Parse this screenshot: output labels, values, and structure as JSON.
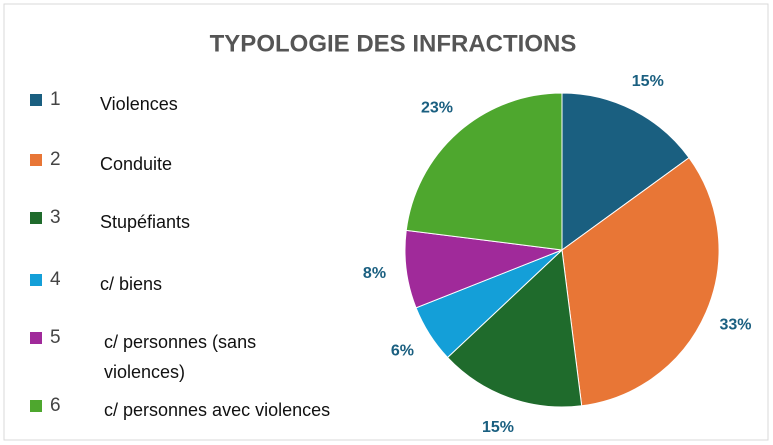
{
  "chart_data": {
    "type": "pie",
    "title": "TYPOLOGIE DES INFRACTIONS",
    "categories": [
      "1",
      "2",
      "3",
      "4",
      "5",
      "6"
    ],
    "descriptions": [
      [
        "Violences"
      ],
      [
        "Conduite"
      ],
      [
        "Stupéfiants"
      ],
      [
        "c/ biens"
      ],
      [
        "c/ personnes (sans",
        "violences)"
      ],
      [
        "c/ personnes avec violences"
      ]
    ],
    "values": [
      15,
      33,
      15,
      6,
      8,
      23
    ],
    "value_labels": [
      "15%",
      "33%",
      "15%",
      "6%",
      "8%",
      "23%"
    ],
    "colors": [
      "#1a5f80",
      "#e87636",
      "#1f6b2c",
      "#149fd8",
      "#a02a9a",
      "#4ea72e"
    ],
    "legend": "left"
  }
}
